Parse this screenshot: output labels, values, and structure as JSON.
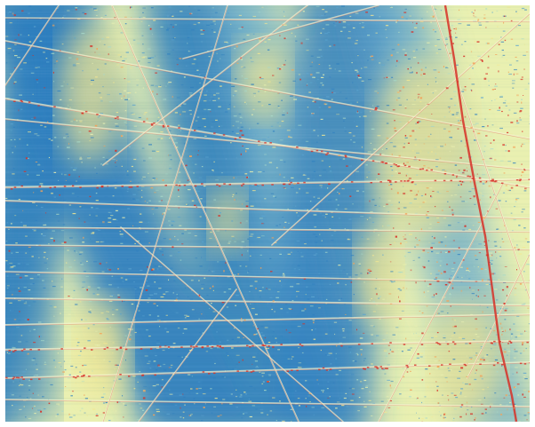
{
  "image": {
    "subject": "",
    "palette": {
      "deep_blue": "#2f7fbf",
      "mid_blue": "#5aa3cf",
      "pale_cyan": "#a8d9c8",
      "cream": "#e9f0b0",
      "yellow": "#f3e792",
      "orange": "#f2a35b",
      "red": "#d73027"
    },
    "scratch_color": "#f5f5d0",
    "speckle_color": "#d73027"
  }
}
